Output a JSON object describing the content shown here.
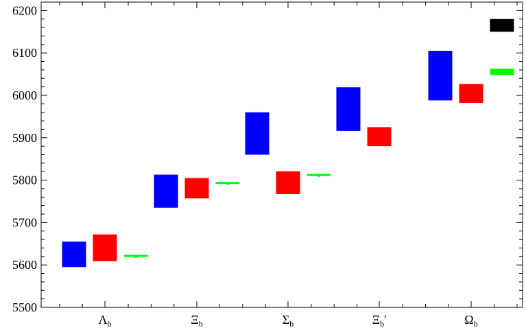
{
  "chart_data": {
    "type": "bar",
    "title": "",
    "xlabel": "",
    "ylabel": "",
    "ylim": [
      5500,
      6220
    ],
    "yticks": [
      5500,
      5600,
      5700,
      5800,
      5900,
      6000,
      6100,
      6200
    ],
    "ytick_labels": [
      "5500",
      "5600",
      "5700",
      "5800",
      "5900",
      "6000",
      "6100",
      "6200"
    ],
    "grid": false,
    "legend": "none",
    "categories": [
      {
        "base": "Λ",
        "sub": "b",
        "prime": ""
      },
      {
        "base": "Ξ",
        "sub": "b",
        "prime": ""
      },
      {
        "base": "Σ",
        "sub": "b",
        "prime": ""
      },
      {
        "base": "Ξ",
        "sub": "b",
        "prime": "'"
      },
      {
        "base": "Ω",
        "sub": "b",
        "prime": ""
      }
    ],
    "series": [
      {
        "color": "#0000ff",
        "ranges": [
          [
            5595,
            5655
          ],
          [
            5735,
            5813
          ],
          [
            5860,
            5960
          ],
          [
            5916,
            6019
          ],
          [
            5988,
            6105
          ]
        ]
      },
      {
        "color": "#ff0000",
        "ranges": [
          [
            5609,
            5672
          ],
          [
            5757,
            5805
          ],
          [
            5767,
            5821
          ],
          [
            5880,
            5925
          ],
          [
            5982,
            6027
          ]
        ]
      },
      {
        "color": "#00ff00",
        "ranges": [
          [
            5619,
            5621
          ],
          [
            5791,
            5794
          ],
          [
            5810,
            5813
          ],
          null,
          [
            6048,
            6063
          ]
        ],
        "marker": [
          true,
          true,
          true,
          false,
          false
        ]
      },
      {
        "color": "#000000",
        "ranges": [
          null,
          null,
          null,
          null,
          [
            6150,
            6180
          ]
        ]
      }
    ]
  }
}
